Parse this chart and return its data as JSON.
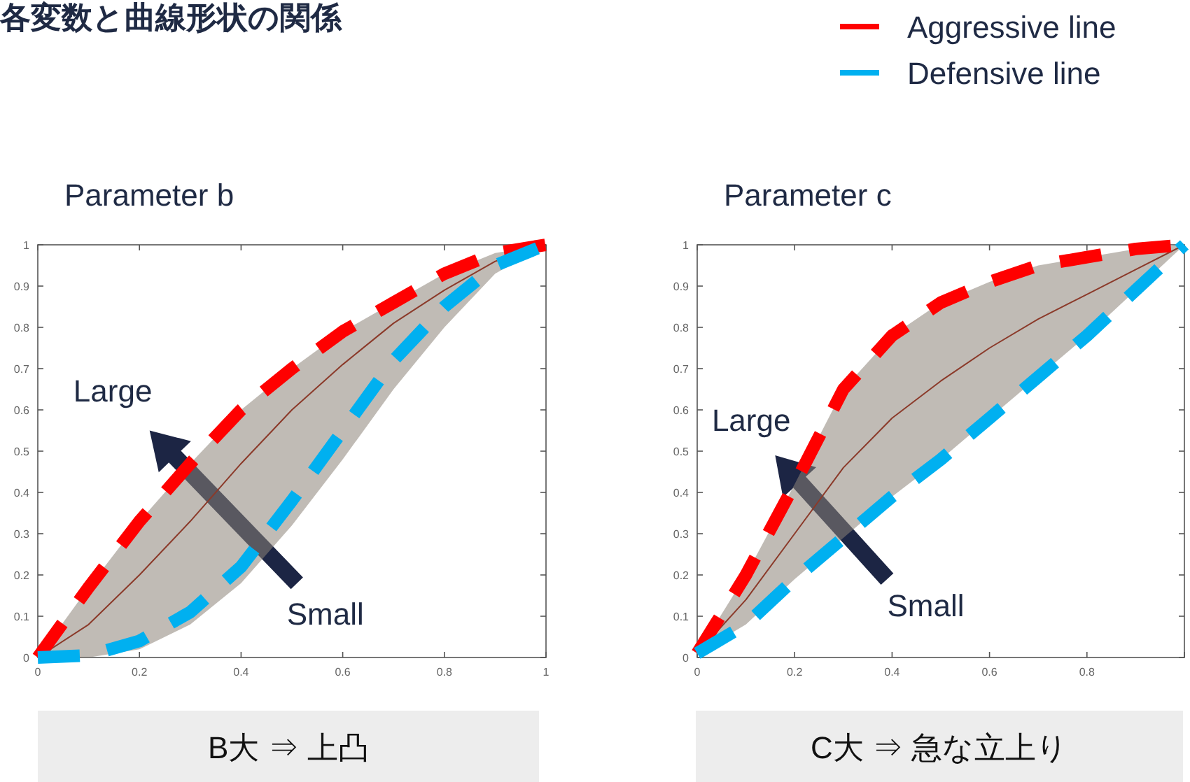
{
  "chart_data": [
    {
      "type": "line",
      "title": "Parameter b",
      "x": [
        0,
        0.1,
        0.2,
        0.3,
        0.4,
        0.5,
        0.6,
        0.7,
        0.8,
        0.9,
        1
      ],
      "xlim": [
        0,
        1
      ],
      "ylim": [
        0,
        1
      ],
      "xticks": [
        0,
        0.2,
        0.4,
        0.6,
        0.8,
        1
      ],
      "yticks": [
        0,
        0.1,
        0.2,
        0.3,
        0.4,
        0.5,
        0.6,
        0.7,
        0.8,
        0.9,
        1
      ],
      "legend": "top right",
      "line_style": "dashed",
      "series": [
        {
          "color": "#8b3a2a",
          "line_style": "solid",
          "values": [
            0,
            0.08,
            0.2,
            0.33,
            0.47,
            0.6,
            0.71,
            0.81,
            0.89,
            0.96,
            1
          ],
          "lower": [
            0,
            0,
            0.02,
            0.08,
            0.18,
            0.32,
            0.48,
            0.65,
            0.8,
            0.93,
            1
          ],
          "upper": [
            0,
            0.17,
            0.33,
            0.47,
            0.6,
            0.7,
            0.79,
            0.86,
            0.93,
            0.98,
            1
          ]
        },
        {
          "name": "Aggressive line",
          "color": "#ff0000",
          "values": [
            0,
            0.17,
            0.33,
            0.47,
            0.6,
            0.7,
            0.79,
            0.86,
            0.93,
            0.98,
            1
          ]
        },
        {
          "name": "Defensive line",
          "color": "#00b0f0",
          "values": [
            0,
            0.005,
            0.04,
            0.11,
            0.22,
            0.38,
            0.55,
            0.72,
            0.85,
            0.95,
            1
          ]
        }
      ],
      "annotations": [
        "各変数と曲線形状の関係",
        "Large",
        "Small",
        "B大 ⇒ 上凸"
      ]
    },
    {
      "type": "line",
      "title": "Parameter c",
      "x": [
        0,
        0.1,
        0.2,
        0.3,
        0.4,
        0.5,
        0.6,
        0.7,
        0.8,
        0.9,
        1
      ],
      "xlim": [
        0,
        1
      ],
      "ylim": [
        0,
        1
      ],
      "xticks": [
        0,
        0.2,
        0.4,
        0.6,
        0.8,
        {
          "value": 1,
          "label": null
        }
      ],
      "yticks": [
        0,
        0.1,
        0.2,
        0.3,
        0.4,
        0.5,
        0.6,
        0.7,
        0.8,
        0.9,
        1
      ],
      "line_style": "dashed",
      "series": [
        {
          "color": "#8b3a2a",
          "line_style": "solid",
          "values": [
            0.01,
            0.14,
            0.3,
            0.46,
            0.58,
            0.67,
            0.75,
            0.82,
            0.88,
            0.94,
            1
          ],
          "lower": [
            0.01,
            0.08,
            0.19,
            0.29,
            0.39,
            0.48,
            0.58,
            0.68,
            0.78,
            0.89,
            1
          ],
          "upper": [
            0.01,
            0.2,
            0.42,
            0.65,
            0.78,
            0.86,
            0.91,
            0.95,
            0.97,
            0.99,
            1
          ]
        },
        {
          "color": "#ff0000",
          "values": [
            0.01,
            0.2,
            0.42,
            0.65,
            0.78,
            0.86,
            0.91,
            0.95,
            0.97,
            0.99,
            1
          ]
        },
        {
          "color": "#00b0f0",
          "values": [
            0.01,
            0.08,
            0.19,
            0.29,
            0.39,
            0.48,
            0.58,
            0.68,
            0.78,
            0.89,
            1
          ]
        }
      ],
      "annotations": [
        "Large",
        "Small",
        "C大 ⇒ 急な立上り"
      ]
    }
  ]
}
